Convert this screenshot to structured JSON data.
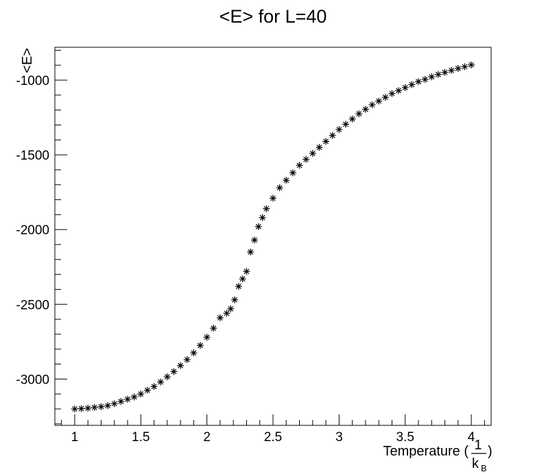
{
  "chart_data": {
    "type": "scatter",
    "title": "<E> for L=40",
    "xlabel": {
      "main": "Temperature (",
      "frac_numerator": "1",
      "frac_denominator": "k",
      "frac_denominator_sub": "B",
      "close": ")"
    },
    "ylabel": "<E>",
    "xlim": [
      0.85,
      4.15
    ],
    "ylim": [
      -3310,
      -780
    ],
    "x_major_ticks": [
      1,
      1.5,
      2,
      2.5,
      3,
      3.5,
      4
    ],
    "x_tick_labels": [
      "1",
      "1.5",
      "2",
      "2.5",
      "3",
      "3.5",
      "4"
    ],
    "y_major_ticks": [
      -3000,
      -2500,
      -2000,
      -1500,
      -1000
    ],
    "y_tick_labels": [
      "-3000",
      "-2500",
      "-2000",
      "-1500",
      "-1000"
    ],
    "marker": "asterisk",
    "marker_color": "#000000",
    "grid": false,
    "points": {
      "x": [
        1.0,
        1.05,
        1.1,
        1.15,
        1.2,
        1.25,
        1.3,
        1.35,
        1.4,
        1.45,
        1.5,
        1.55,
        1.6,
        1.65,
        1.7,
        1.75,
        1.8,
        1.85,
        1.9,
        1.95,
        2.0,
        2.05,
        2.1,
        2.15,
        2.18,
        2.21,
        2.24,
        2.27,
        2.3,
        2.33,
        2.36,
        2.39,
        2.42,
        2.45,
        2.5,
        2.55,
        2.6,
        2.65,
        2.7,
        2.75,
        2.8,
        2.85,
        2.9,
        2.95,
        3.0,
        3.05,
        3.1,
        3.15,
        3.2,
        3.25,
        3.3,
        3.35,
        3.4,
        3.45,
        3.5,
        3.55,
        3.6,
        3.65,
        3.7,
        3.75,
        3.8,
        3.85,
        3.9,
        3.95,
        4.0
      ],
      "y": [
        -3200,
        -3198,
        -3195,
        -3190,
        -3185,
        -3178,
        -3165,
        -3150,
        -3135,
        -3120,
        -3100,
        -3075,
        -3050,
        -3020,
        -2985,
        -2950,
        -2910,
        -2870,
        -2825,
        -2775,
        -2720,
        -2660,
        -2590,
        -2560,
        -2530,
        -2470,
        -2380,
        -2330,
        -2280,
        -2150,
        -2070,
        -1980,
        -1920,
        -1860,
        -1790,
        -1720,
        -1670,
        -1620,
        -1570,
        -1530,
        -1490,
        -1450,
        -1410,
        -1370,
        -1330,
        -1295,
        -1260,
        -1225,
        -1195,
        -1165,
        -1140,
        -1115,
        -1090,
        -1070,
        -1050,
        -1030,
        -1010,
        -995,
        -978,
        -962,
        -948,
        -935,
        -922,
        -910,
        -898
      ]
    }
  }
}
